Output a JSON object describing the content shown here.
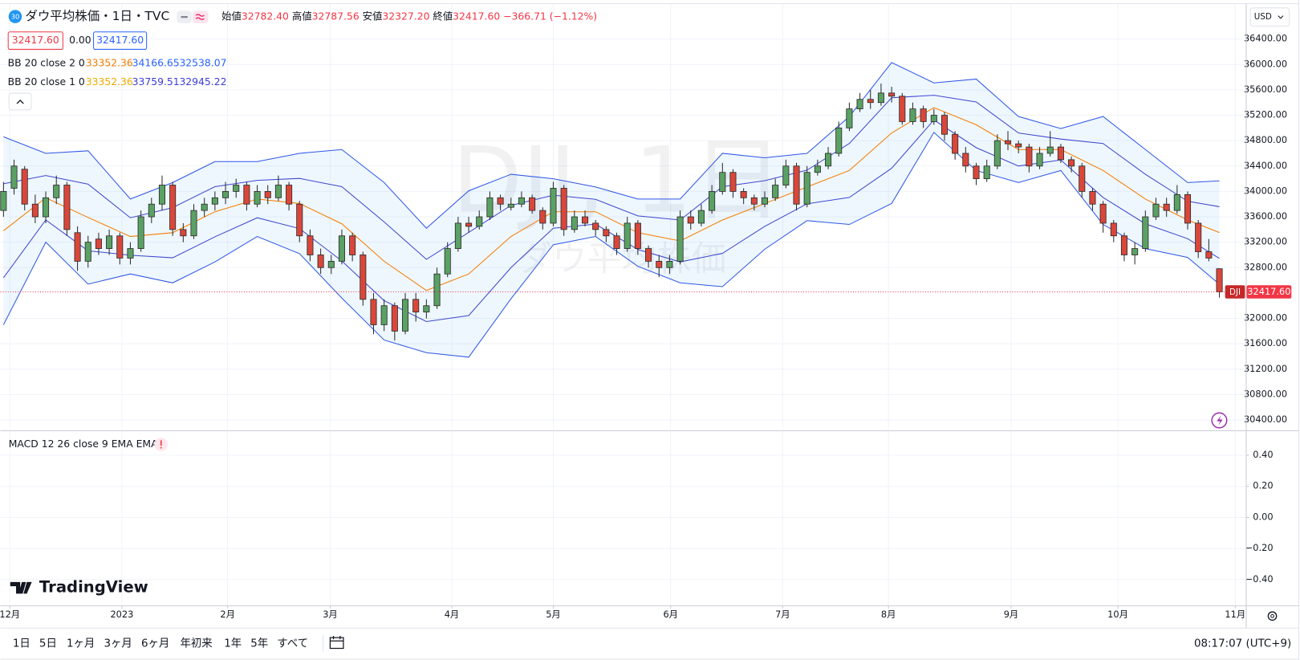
{
  "header": {
    "symbol_badge": "30",
    "title": "ダウ平均株価・1日・TVC",
    "ohlc": [
      {
        "label": "始値",
        "value": "32782.40"
      },
      {
        "label": "高値",
        "value": "32787.56"
      },
      {
        "label": "安値",
        "value": "32327.20"
      },
      {
        "label": "終値",
        "value": "32417.60"
      }
    ],
    "change": "−366.71 (−1.12%)",
    "price_box": "32417.60",
    "spread": "0.00",
    "price_box2": "32417.60",
    "currency": "USD"
  },
  "indicators": [
    {
      "name": "BB 20 close 2 0",
      "values": [
        "33352.36",
        "34166.65",
        "32538.07"
      ],
      "colors": [
        "#f57c00",
        "#2962ff",
        "#2962ff"
      ]
    },
    {
      "name": "BB 20 close 1 0",
      "values": [
        "33352.36",
        "33759.51",
        "32945.22"
      ],
      "colors": [
        "#f2a900",
        "#3d3dd6",
        "#3d3dd6"
      ]
    }
  ],
  "chart_data": [
    {
      "type": "candlestick",
      "watermark": "DJI, 1日",
      "watermark_sub": "ダウ平均株価",
      "symbol": "DJI",
      "last_price_label": "32417.60",
      "colors": {
        "up": "#5aa163",
        "down": "#d9473a",
        "border": "#2b2b2b",
        "basis": "#f57c00",
        "band_2": "#2f56e8",
        "band_1": "#3f47cf",
        "fill": "rgba(33,150,243,0.08)",
        "last": "#f23645"
      },
      "grid": true,
      "xlim": [
        -0.3,
        117.5
      ],
      "ylim": [
        30250,
        36950
      ],
      "xticks": [
        {
          "value": 0.6,
          "label": "12月"
        },
        {
          "value": 11.2,
          "label": "2023"
        },
        {
          "value": 21.2,
          "label": "2月"
        },
        {
          "value": 30.9,
          "label": "3月"
        },
        {
          "value": 42.4,
          "label": "4月"
        },
        {
          "value": 52,
          "label": "5月"
        },
        {
          "value": 63.1,
          "label": "6月"
        },
        {
          "value": 73.7,
          "label": "7月"
        },
        {
          "value": 83.7,
          "label": "8月"
        },
        {
          "value": 95.3,
          "label": "9月"
        },
        {
          "value": 105.4,
          "label": "10月"
        },
        {
          "value": 116.5,
          "label": "11月"
        }
      ],
      "yticks": [
        {
          "value": 30400,
          "label": "30400.00"
        },
        {
          "value": 30800,
          "label": "30800.00"
        },
        {
          "value": 31200,
          "label": "31200.00"
        },
        {
          "value": 31600,
          "label": "31600.00"
        },
        {
          "value": 32000,
          "label": "32000.00"
        },
        {
          "value": 32800,
          "label": "32800.00"
        },
        {
          "value": 33200,
          "label": "33200.00"
        },
        {
          "value": 33600,
          "label": "33600.00"
        },
        {
          "value": 34000,
          "label": "34000.00"
        },
        {
          "value": 34400,
          "label": "34400.00"
        },
        {
          "value": 34800,
          "label": "34800.00"
        },
        {
          "value": 35200,
          "label": "35200.00"
        },
        {
          "value": 35600,
          "label": "35600.00"
        },
        {
          "value": 36000,
          "label": "36000.00"
        },
        {
          "value": 36400,
          "label": "36400.00"
        }
      ],
      "ohlc": [
        [
          33700,
          34150,
          33600,
          34000
        ],
        [
          34050,
          34500,
          33950,
          34400
        ],
        [
          34350,
          34400,
          33700,
          33800
        ],
        [
          33800,
          33950,
          33500,
          33600
        ],
        [
          33600,
          34000,
          33500,
          33900
        ],
        [
          33900,
          34250,
          33800,
          34100
        ],
        [
          34100,
          34150,
          33300,
          33400
        ],
        [
          33350,
          33450,
          32750,
          32900
        ],
        [
          32900,
          33300,
          32800,
          33200
        ],
        [
          33250,
          33350,
          33000,
          33100
        ],
        [
          33100,
          33400,
          33000,
          33300
        ],
        [
          33300,
          33350,
          32850,
          32950
        ],
        [
          32950,
          33200,
          32850,
          33100
        ],
        [
          33100,
          33700,
          33050,
          33600
        ],
        [
          33600,
          33900,
          33500,
          33800
        ],
        [
          33800,
          34250,
          33700,
          34100
        ],
        [
          34100,
          34150,
          33300,
          33400
        ],
        [
          33400,
          33500,
          33200,
          33300
        ],
        [
          33300,
          33800,
          33250,
          33700
        ],
        [
          33700,
          33900,
          33600,
          33800
        ],
        [
          33800,
          34000,
          33700,
          33900
        ],
        [
          33900,
          34150,
          33800,
          34000
        ],
        [
          34000,
          34200,
          33900,
          34100
        ],
        [
          34100,
          34150,
          33700,
          33800
        ],
        [
          33800,
          34100,
          33750,
          34000
        ],
        [
          34000,
          34100,
          33800,
          33900
        ],
        [
          33900,
          34250,
          33850,
          34100
        ],
        [
          34100,
          34150,
          33700,
          33800
        ],
        [
          33800,
          33850,
          33200,
          33300
        ],
        [
          33300,
          33400,
          32900,
          33000
        ],
        [
          33000,
          33100,
          32700,
          32800
        ],
        [
          32800,
          33000,
          32700,
          32900
        ],
        [
          32900,
          33400,
          32850,
          33300
        ],
        [
          33300,
          33350,
          32900,
          33000
        ],
        [
          33000,
          33050,
          32200,
          32300
        ],
        [
          32300,
          32400,
          31750,
          31900
        ],
        [
          31900,
          32300,
          31800,
          32200
        ],
        [
          32200,
          32250,
          31650,
          31800
        ],
        [
          31800,
          32400,
          31750,
          32300
        ],
        [
          32300,
          32400,
          31950,
          32100
        ],
        [
          32100,
          32300,
          32000,
          32200
        ],
        [
          32200,
          32800,
          32150,
          32700
        ],
        [
          32700,
          33200,
          32650,
          33100
        ],
        [
          33100,
          33600,
          33050,
          33500
        ],
        [
          33500,
          33600,
          33350,
          33450
        ],
        [
          33450,
          33700,
          33400,
          33600
        ],
        [
          33600,
          34000,
          33550,
          33900
        ],
        [
          33900,
          33950,
          33700,
          33800
        ],
        [
          33750,
          33900,
          33700,
          33800
        ],
        [
          33800,
          34000,
          33750,
          33900
        ],
        [
          33900,
          33950,
          33650,
          33700
        ],
        [
          33700,
          33750,
          33400,
          33500
        ],
        [
          33500,
          34150,
          33450,
          34050
        ],
        [
          34050,
          34100,
          33300,
          33400
        ],
        [
          33400,
          33700,
          33350,
          33600
        ],
        [
          33600,
          33700,
          33450,
          33500
        ],
        [
          33500,
          33550,
          33300,
          33400
        ],
        [
          33400,
          33450,
          33200,
          33300
        ],
        [
          33300,
          33350,
          33000,
          33100
        ],
        [
          33100,
          33600,
          33050,
          33500
        ],
        [
          33500,
          33550,
          33000,
          33100
        ],
        [
          33100,
          33150,
          32800,
          32900
        ],
        [
          32900,
          33000,
          32650,
          32800
        ],
        [
          32800,
          33000,
          32700,
          32900
        ],
        [
          32900,
          33700,
          32850,
          33600
        ],
        [
          33600,
          33700,
          33400,
          33500
        ],
        [
          33500,
          33800,
          33450,
          33700
        ],
        [
          33700,
          34100,
          33650,
          34000
        ],
        [
          34000,
          34450,
          33950,
          34300
        ],
        [
          34300,
          34350,
          33900,
          34000
        ],
        [
          34000,
          34050,
          33800,
          33900
        ],
        [
          33900,
          33950,
          33700,
          33800
        ],
        [
          33800,
          34000,
          33750,
          33900
        ],
        [
          33900,
          34200,
          33850,
          34100
        ],
        [
          34100,
          34500,
          34050,
          34400
        ],
        [
          34400,
          34450,
          33700,
          33800
        ],
        [
          33800,
          34400,
          33750,
          34300
        ],
        [
          34300,
          34500,
          34250,
          34400
        ],
        [
          34400,
          34700,
          34350,
          34600
        ],
        [
          34600,
          35100,
          34550,
          35000
        ],
        [
          35000,
          35400,
          34950,
          35300
        ],
        [
          35300,
          35550,
          35250,
          35450
        ],
        [
          35450,
          35600,
          35300,
          35400
        ],
        [
          35400,
          35700,
          35350,
          35550
        ],
        [
          35550,
          35650,
          35400,
          35500
        ],
        [
          35500,
          35550,
          35050,
          35100
        ],
        [
          35100,
          35400,
          35050,
          35300
        ],
        [
          35300,
          35350,
          35000,
          35100
        ],
        [
          35100,
          35300,
          35050,
          35200
        ],
        [
          35200,
          35250,
          34800,
          34900
        ],
        [
          34900,
          34950,
          34500,
          34600
        ],
        [
          34600,
          34700,
          34300,
          34400
        ],
        [
          34400,
          34450,
          34100,
          34200
        ],
        [
          34200,
          34500,
          34150,
          34400
        ],
        [
          34400,
          34900,
          34350,
          34800
        ],
        [
          34800,
          34950,
          34650,
          34750
        ],
        [
          34750,
          34800,
          34600,
          34700
        ],
        [
          34700,
          34750,
          34300,
          34400
        ],
        [
          34400,
          34700,
          34350,
          34600
        ],
        [
          34600,
          34950,
          34550,
          34700
        ],
        [
          34700,
          34750,
          34450,
          34500
        ],
        [
          34500,
          34550,
          34300,
          34400
        ],
        [
          34400,
          34450,
          33900,
          34000
        ],
        [
          34000,
          34050,
          33700,
          33800
        ],
        [
          33800,
          33850,
          33350,
          33500
        ],
        [
          33500,
          33550,
          33200,
          33300
        ],
        [
          33300,
          33350,
          32900,
          33000
        ],
        [
          33000,
          33200,
          32850,
          33100
        ],
        [
          33100,
          33700,
          33050,
          33600
        ],
        [
          33600,
          33900,
          33550,
          33800
        ],
        [
          33800,
          33900,
          33600,
          33700
        ],
        [
          33700,
          34100,
          33650,
          33950
        ],
        [
          33950,
          34000,
          33400,
          33500
        ],
        [
          33500,
          33550,
          32950,
          33050
        ],
        [
          33050,
          33250,
          32900,
          32950
        ],
        [
          32782.4,
          32787.56,
          32327.2,
          32417.6
        ]
      ],
      "bands": {
        "x": [
          0,
          4,
          8,
          12,
          16,
          20,
          24,
          28,
          32,
          36,
          40,
          44,
          48,
          52,
          56,
          60,
          64,
          68,
          72,
          76,
          80,
          84,
          88,
          92,
          96,
          100,
          104,
          108,
          112,
          115
        ],
        "upper_2": [
          34860,
          34600,
          34640,
          33880,
          34140,
          34470,
          34470,
          34600,
          34660,
          34140,
          33420,
          34010,
          34270,
          34200,
          34070,
          33880,
          33880,
          34600,
          34530,
          34600,
          35180,
          36030,
          35710,
          35770,
          35180,
          34990,
          35180,
          34660,
          34140,
          34166.65
        ],
        "lower_2": [
          31900,
          33200,
          32540,
          32700,
          32560,
          32890,
          33290,
          33020,
          32320,
          31660,
          31460,
          31390,
          32310,
          33160,
          33290,
          32820,
          32560,
          32500,
          33090,
          33540,
          33480,
          33810,
          34930,
          34330,
          34140,
          34330,
          33480,
          33100,
          32960,
          32538.07
        ],
        "upper_1": [
          34120,
          34250,
          34115,
          33585,
          33745,
          34075,
          34175,
          34205,
          34075,
          33520,
          32930,
          33355,
          33780,
          33940,
          33875,
          33615,
          33550,
          34075,
          34170,
          34335,
          34755,
          35475,
          35515,
          35410,
          34920,
          34825,
          34755,
          34270,
          33845,
          33759.51
        ],
        "lower_1": [
          32640,
          33550,
          33065,
          32995,
          32955,
          33285,
          33585,
          33415,
          32905,
          32280,
          31950,
          32045,
          32800,
          33420,
          33485,
          33085,
          32890,
          33025,
          33450,
          33805,
          33905,
          34365,
          35125,
          34690,
          34400,
          34495,
          33905,
          33490,
          33255,
          32945.22
        ],
        "basis": [
          33380,
          33900,
          33590,
          33290,
          33350,
          33680,
          33880,
          33810,
          33490,
          32900,
          32440,
          32700,
          33290,
          33680,
          33680,
          33350,
          33220,
          33550,
          33810,
          34070,
          34330,
          34920,
          35320,
          35050,
          34660,
          34660,
          34330,
          33880,
          33550,
          33352.36
        ]
      }
    },
    {
      "type": "line",
      "title": "MACD 12 26 close 9 EMA EMA",
      "grid": true,
      "ylim": [
        -0.565,
        0.555
      ],
      "yticks": [
        {
          "value": 0.4,
          "label": "0.40"
        },
        {
          "value": 0.2,
          "label": "0.20"
        },
        {
          "value": 0,
          "label": "0.00"
        },
        {
          "value": -0.2,
          "label": "−0.20"
        },
        {
          "value": -0.4,
          "label": "−0.40"
        }
      ],
      "series": []
    }
  ],
  "branding": "TradingView",
  "toolbar": {
    "ranges": [
      "1日",
      "5日",
      "1ヶ月",
      "3ヶ月",
      "6ヶ月",
      "年初来",
      "1年",
      "5年",
      "すべて"
    ],
    "time": "08:17:07 (UTC+9)"
  }
}
